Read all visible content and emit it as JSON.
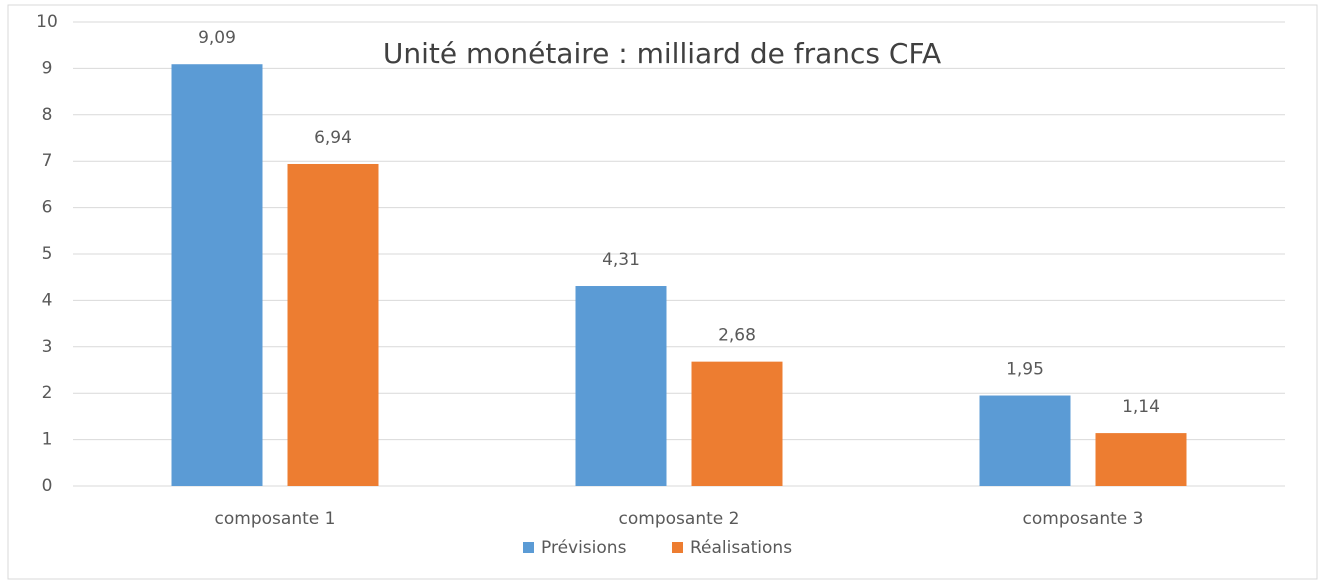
{
  "chart_data": {
    "type": "bar",
    "title": "Unité monétaire : milliard de francs CFA",
    "categories": [
      "composante 1",
      "composante 2",
      "composante 3"
    ],
    "series": [
      {
        "name": "Prévisions",
        "color": "#5b9bd5",
        "values": [
          9.09,
          4.31,
          1.95
        ],
        "value_labels": [
          "9,09",
          "4,31",
          "1,95"
        ]
      },
      {
        "name": "Réalisations",
        "color": "#ed7d31",
        "values": [
          6.94,
          2.68,
          1.14
        ],
        "value_labels": [
          "6,94",
          "2,68",
          "1,14"
        ]
      }
    ],
    "ylim": [
      0,
      10
    ],
    "yticks": [
      0,
      1,
      2,
      3,
      4,
      5,
      6,
      7,
      8,
      9,
      10
    ],
    "grid": true,
    "legend": "bottom"
  }
}
